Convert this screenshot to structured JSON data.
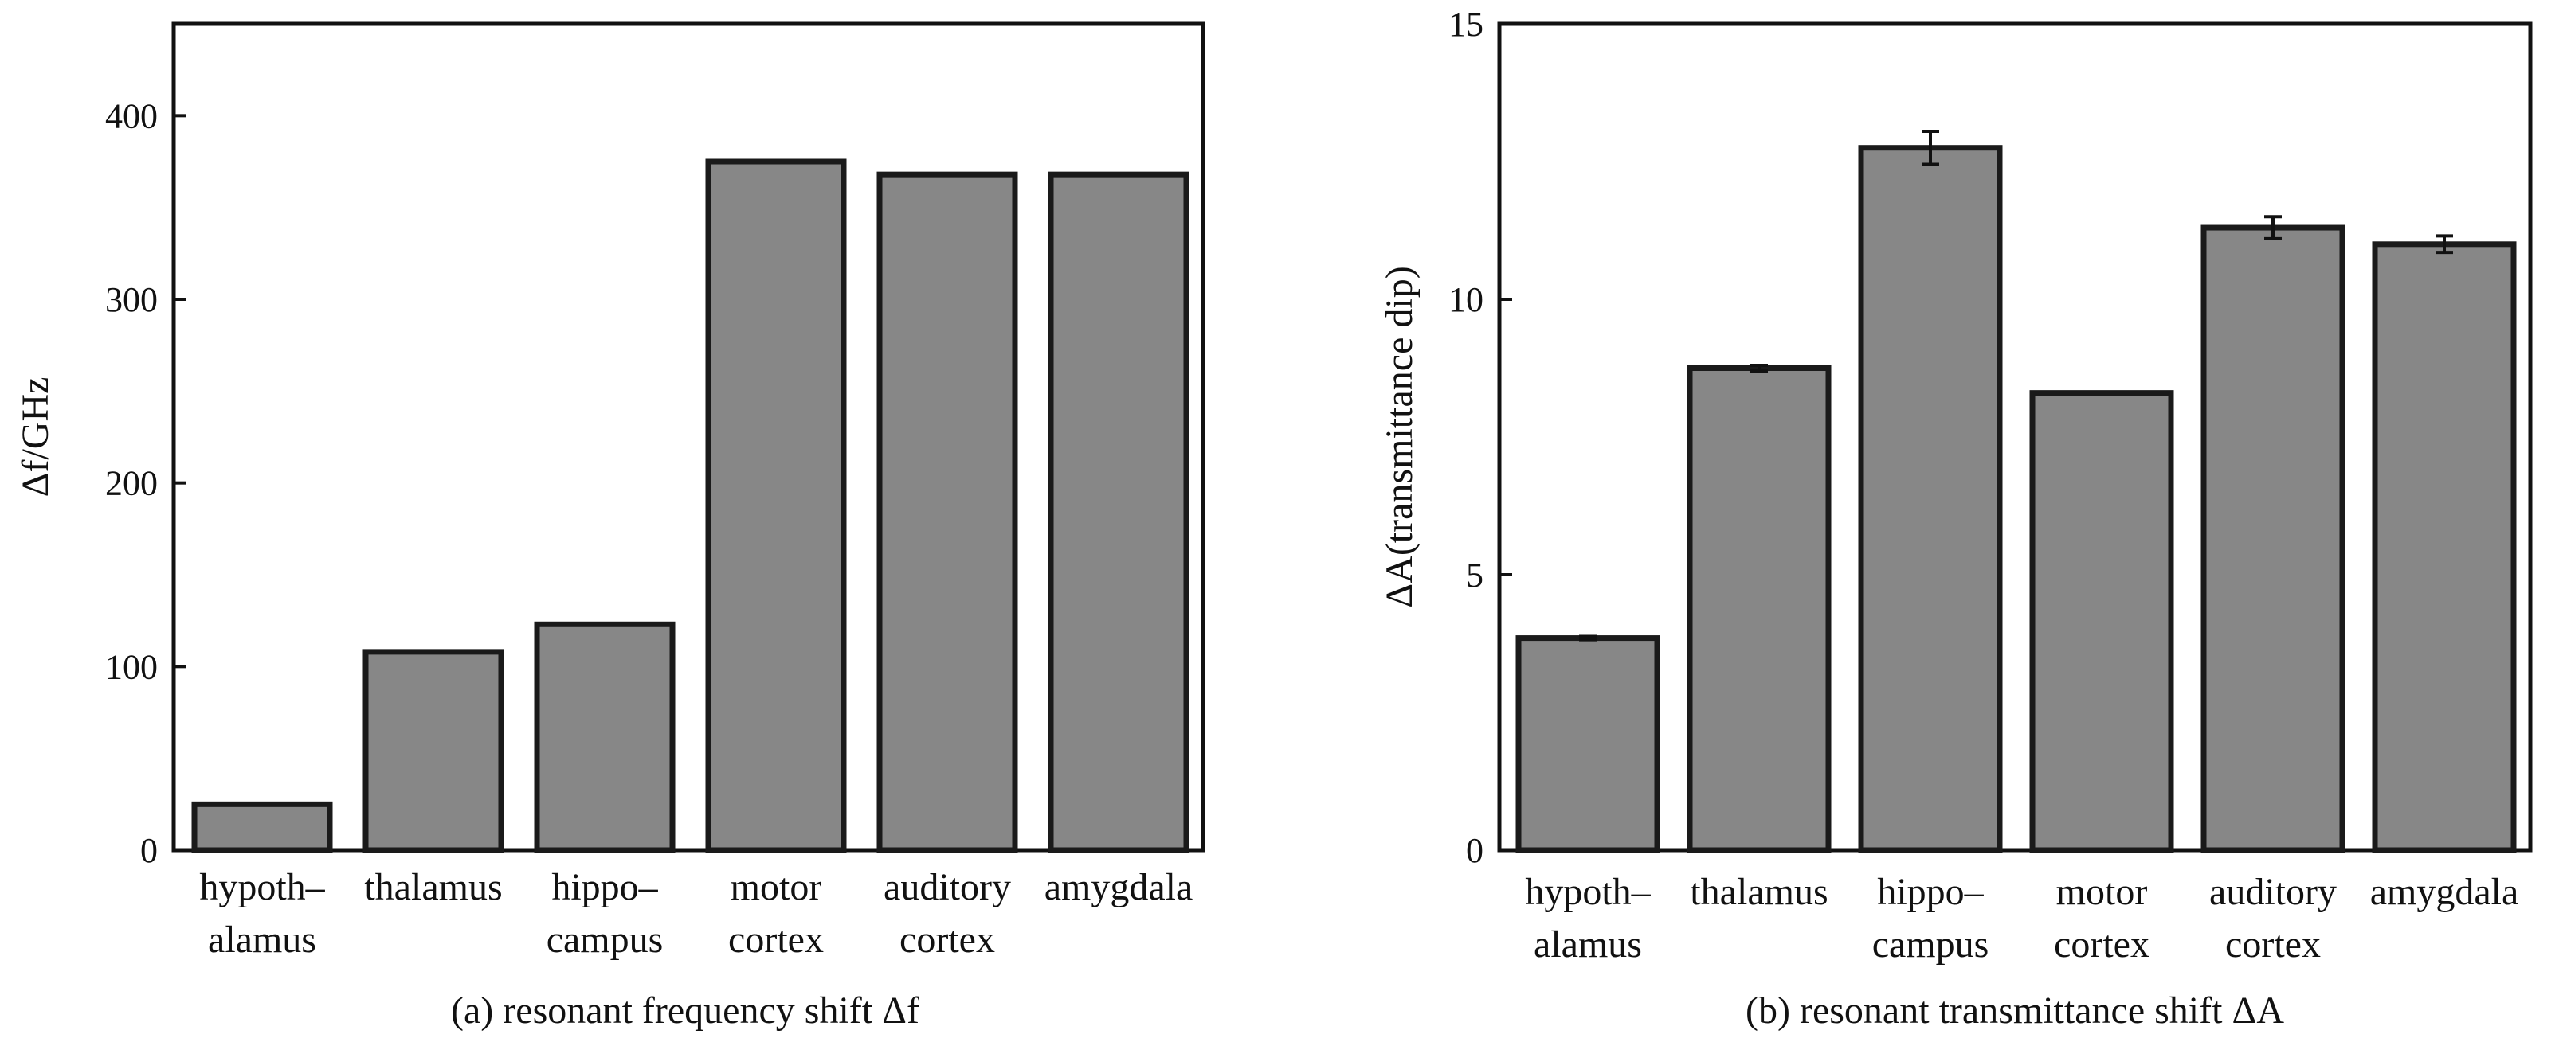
{
  "chart_data": [
    {
      "type": "bar",
      "categories": [
        [
          "hypoth–",
          "alamus"
        ],
        [
          "thalamus"
        ],
        [
          "hippo–",
          "campus"
        ],
        [
          "motor",
          "cortex"
        ],
        [
          "auditory",
          "cortex"
        ],
        [
          "amygdala"
        ]
      ],
      "values": [
        25,
        108,
        123,
        375,
        368,
        368
      ],
      "ylabel": "Δf/GHz",
      "ylim": [
        0,
        450
      ],
      "yticks": [
        0,
        100,
        200,
        300,
        400
      ],
      "caption": "(a) resonant frequency shift Δf",
      "grid": false,
      "legend": "none"
    },
    {
      "type": "bar",
      "categories": [
        [
          "hypoth–",
          "alamus"
        ],
        [
          "thalamus"
        ],
        [
          "hippo–",
          "campus"
        ],
        [
          "motor",
          "cortex"
        ],
        [
          "auditory",
          "cortex"
        ],
        [
          "amygdala"
        ]
      ],
      "values": [
        3.85,
        8.75,
        12.75,
        8.3,
        11.3,
        11.0
      ],
      "errors": [
        0.03,
        0.05,
        0.3,
        0,
        0.2,
        0.15
      ],
      "ylabel": "ΔA(transmittance dip)",
      "ylim": [
        0,
        15
      ],
      "yticks": [
        0,
        5,
        10,
        15
      ],
      "caption": "(b) resonant transmittance shift ΔA",
      "grid": false,
      "legend": "none"
    }
  ]
}
